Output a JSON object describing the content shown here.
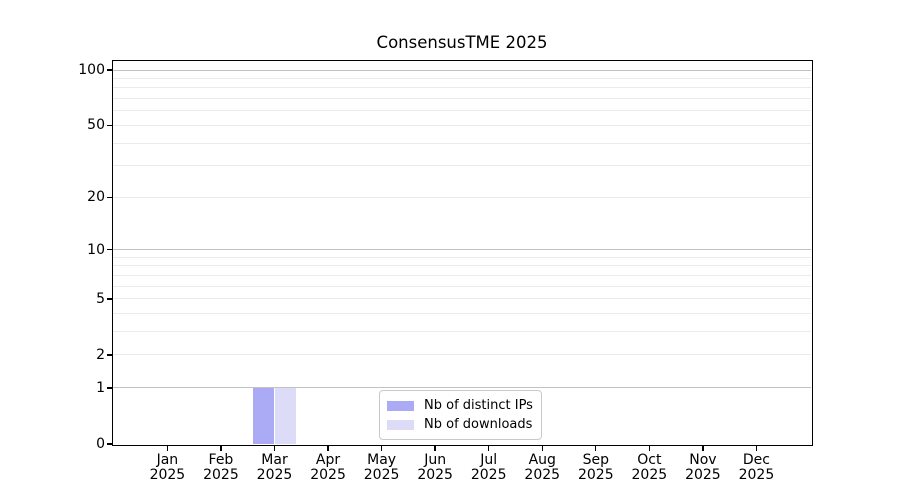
{
  "figure": {
    "background": "#ffffff"
  },
  "chart_data": {
    "type": "bar",
    "title": "ConsensusTME 2025",
    "x_year": "2025",
    "categories": [
      "Jan",
      "Feb",
      "Mar",
      "Apr",
      "May",
      "Jun",
      "Jul",
      "Aug",
      "Sep",
      "Oct",
      "Nov",
      "Dec"
    ],
    "series": [
      {
        "name": "Nb of distinct IPs",
        "color": "#aaaaf5",
        "values": [
          0,
          0,
          1,
          0,
          0,
          0,
          0,
          0,
          0,
          0,
          0,
          0
        ]
      },
      {
        "name": "Nb of downloads",
        "color": "#dcdcf8",
        "values": [
          0,
          0,
          1,
          0,
          0,
          0,
          0,
          0,
          0,
          0,
          0,
          0
        ]
      }
    ],
    "y_axis": {
      "scale": "log1p",
      "tick_values": [
        0,
        1,
        2,
        5,
        10,
        20,
        50,
        100
      ],
      "major_gridlines": [
        1,
        10,
        100
      ],
      "minor_gridlines": [
        2,
        3,
        4,
        5,
        6,
        7,
        8,
        9,
        20,
        30,
        40,
        50,
        60,
        70,
        80,
        90
      ],
      "top_value": 112,
      "ylim": [
        0,
        112
      ]
    },
    "legend": {
      "position": "lower center",
      "entries": [
        "Nb of distinct IPs",
        "Nb of downloads"
      ]
    },
    "grid": true,
    "colors": {
      "major_grid": "#c2c2c2",
      "minor_grid": "#ebebeb",
      "spine": "#000000",
      "background": "#ffffff"
    }
  }
}
